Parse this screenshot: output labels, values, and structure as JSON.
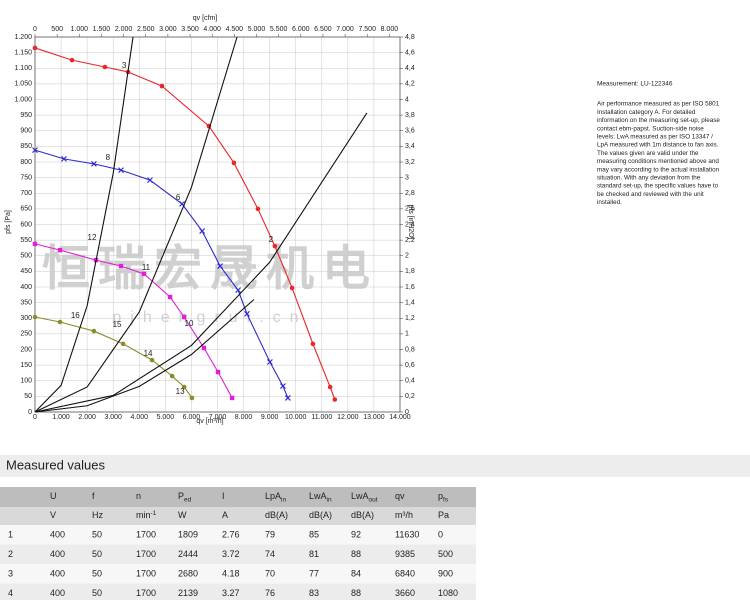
{
  "chart_data": {
    "type": "line",
    "x_label": "qv [m³/h]",
    "x2_label": "qv [cfm]",
    "y_label": "pfs [Pa]",
    "y2_label": "pfs [inH2O]",
    "xlim": [
      0,
      14000
    ],
    "x2lim": [
      0,
      8240
    ],
    "ylim": [
      0,
      1200
    ],
    "y2lim": [
      0,
      4.8
    ],
    "grid": true,
    "xticks": [
      0,
      {
        "value": 1000,
        "label": "1.000"
      },
      {
        "value": 2000,
        "label": "2.000"
      },
      {
        "value": 3000,
        "label": "3.000"
      },
      {
        "value": 4000,
        "label": "4.000"
      },
      {
        "value": 5000,
        "label": "5.000"
      },
      {
        "value": 6000,
        "label": "6.000"
      },
      {
        "value": 7000,
        "label": "7.000"
      },
      {
        "value": 8000,
        "label": "8.000"
      },
      {
        "value": 9000,
        "label": "9.000"
      },
      {
        "value": 10000,
        "label": "10.000"
      },
      {
        "value": 11000,
        "label": "11.000"
      },
      {
        "value": 12000,
        "label": "12.000"
      },
      {
        "value": 13000,
        "label": "13.000"
      },
      {
        "value": 14000,
        "label": "14.000"
      }
    ],
    "x2ticks": [
      0,
      500,
      {
        "value": 1000,
        "label": "1.000"
      },
      {
        "value": 1500,
        "label": "1.500"
      },
      {
        "value": 2000,
        "label": "2.000"
      },
      {
        "value": 2500,
        "label": "2.500"
      },
      {
        "value": 3000,
        "label": "3.000"
      },
      {
        "value": 3500,
        "label": "3.500"
      },
      {
        "value": 4000,
        "label": "4.000"
      },
      {
        "value": 4500,
        "label": "4.500"
      },
      {
        "value": 5000,
        "label": "5.000"
      },
      {
        "value": 5500,
        "label": "5.500"
      },
      {
        "value": 6000,
        "label": "6.000"
      },
      {
        "value": 6500,
        "label": "6.500"
      },
      {
        "value": 7000,
        "label": "7.000"
      },
      {
        "value": 7500,
        "label": "7.500"
      },
      {
        "value": 8000,
        "label": "8.000"
      }
    ],
    "yticks": [
      0,
      50,
      100,
      150,
      200,
      250,
      300,
      350,
      400,
      450,
      500,
      550,
      600,
      650,
      700,
      750,
      800,
      850,
      900,
      950,
      {
        "value": 1000,
        "label": "1.000"
      },
      {
        "value": 1050,
        "label": "1.050"
      },
      {
        "value": 1100,
        "label": "1.100"
      },
      {
        "value": 1150,
        "label": "1.150"
      },
      {
        "value": 1200,
        "label": "1.200"
      }
    ],
    "y2ticks": [
      0,
      {
        "value": 0.2,
        "label": "0,2"
      },
      {
        "value": 0.4,
        "label": "0,4"
      },
      {
        "value": 0.6,
        "label": "0,6"
      },
      {
        "value": 0.8,
        "label": "0,8"
      },
      1,
      {
        "value": 1.2,
        "label": "1,2"
      },
      {
        "value": 1.4,
        "label": "1,4"
      },
      {
        "value": 1.6,
        "label": "1,6"
      },
      {
        "value": 1.8,
        "label": "1,8"
      },
      2,
      {
        "value": 2.2,
        "label": "2,2"
      },
      {
        "value": 2.4,
        "label": "2,4"
      },
      {
        "value": 2.6,
        "label": "2,6"
      },
      {
        "value": 2.8,
        "label": "2,8"
      },
      3,
      {
        "value": 3.2,
        "label": "3,2"
      },
      {
        "value": 3.4,
        "label": "3,4"
      },
      {
        "value": 3.6,
        "label": "3,6"
      },
      {
        "value": 3.8,
        "label": "3,8"
      },
      4,
      {
        "value": 4.2,
        "label": "4,2"
      },
      {
        "value": 4.4,
        "label": "4,4"
      },
      {
        "value": 4.6,
        "label": "4,6"
      },
      {
        "value": 4.8,
        "label": "4,8"
      }
    ],
    "series": [
      {
        "color": "#e8262b",
        "marker": "circle",
        "x": [
          0,
          1420,
          2680,
          3570,
          4870,
          6670,
          7630,
          8550,
          9200,
          9860,
          10660,
          11320,
          11500
        ],
        "values": [
          1165,
          1126,
          1104,
          1088,
          1043,
          915,
          797,
          650,
          531,
          397,
          218,
          80,
          40
        ]
      },
      {
        "color": "#2b2bd0",
        "marker": "x",
        "x": [
          0,
          1110,
          2260,
          3300,
          4410,
          5640,
          6410,
          7100,
          7790,
          8130,
          9010,
          9510,
          9700
        ],
        "values": [
          838,
          810,
          794,
          774,
          742,
          666,
          579,
          467,
          390,
          314,
          160,
          83,
          45
        ]
      },
      {
        "color": "#e020d8",
        "marker": "square",
        "x": [
          0,
          960,
          2340,
          3300,
          4180,
          5180,
          5720,
          6480,
          7020,
          7560
        ],
        "values": [
          538,
          518,
          486,
          467,
          442,
          368,
          304,
          205,
          128,
          45
        ]
      },
      {
        "color": "#8c8c2a",
        "marker": "circle",
        "x": [
          0,
          960,
          2260,
          3380,
          4490,
          5260,
          5720,
          6020
        ],
        "values": [
          304,
          288,
          259,
          218,
          166,
          115,
          80,
          45
        ]
      },
      {
        "color": "#111111",
        "x": [
          0,
          1000,
          2000,
          3000,
          3760
        ],
        "values": [
          0,
          85,
          340,
          764,
          1200
        ]
      },
      {
        "color": "#111111",
        "x": [
          0,
          2000,
          4000,
          6000,
          7750
        ],
        "values": [
          0,
          80,
          320,
          719,
          1200
        ]
      },
      {
        "color": "#111111",
        "x": [
          0,
          3000,
          6000,
          9000,
          12730
        ],
        "values": [
          0,
          53,
          213,
          479,
          957
        ]
      },
      {
        "color": "#111111",
        "x": [
          0,
          2000,
          4000,
          6000,
          8400
        ],
        "values": [
          0,
          20,
          82,
          184,
          360
        ]
      }
    ],
    "annotations": [
      {
        "text": "3",
        "x": 3570,
        "y": 1088
      },
      {
        "text": "8",
        "x": 2950,
        "y": 794
      },
      {
        "text": "6",
        "x": 5640,
        "y": 666
      },
      {
        "text": "12",
        "x": 2340,
        "y": 538
      },
      {
        "text": "11",
        "x": 4410,
        "y": 442
      },
      {
        "text": "16",
        "x": 1700,
        "y": 288
      },
      {
        "text": "15",
        "x": 3300,
        "y": 259
      },
      {
        "text": "14",
        "x": 4490,
        "y": 166
      },
      {
        "text": "10",
        "x": 6060,
        "y": 262
      },
      {
        "text": "2",
        "x": 9200,
        "y": 531
      },
      {
        "text": "13",
        "x": 5720,
        "y": 45
      }
    ]
  },
  "watermark": {
    "name": "恒瑞宏晟机电",
    "url": "pjhengrui.cn"
  },
  "notes": {
    "measurement": "Measurement: LU-122346",
    "lines": [
      "Air performance measured as per ISO 5801",
      "Installation category A. For detailed",
      "information on the measuring set-up, please",
      "contact ebm-papst. Suction-side noise",
      "levels: LwA measured as per ISO 13347 /",
      "LpA measured with 1m distance to fan axis.",
      "The values given are valid under the",
      "measuring conditions mentioned above and",
      "may vary according to the actual installation",
      "situation. With any deviation from the",
      "standard set-up, the specific values have to",
      "be checked and reviewed with the unit",
      "installed."
    ]
  },
  "table": {
    "title": "Measured values",
    "headers": [
      {
        "text": "U"
      },
      {
        "text": "f"
      },
      {
        "text": "n"
      },
      {
        "text": "P",
        "sub": "ed"
      },
      {
        "text": "I"
      },
      {
        "text": "LpA",
        "sub": "in"
      },
      {
        "text": "LwA",
        "sub": "in"
      },
      {
        "text": "LwA",
        "sub": "out"
      },
      {
        "text": "qv"
      },
      {
        "text": "p",
        "sub": "fs"
      }
    ],
    "units": [
      {
        "text": "V"
      },
      {
        "text": "Hz"
      },
      {
        "text": "min",
        "sup": "-1"
      },
      {
        "text": "W"
      },
      {
        "text": "A"
      },
      {
        "text": "dB(A)"
      },
      {
        "text": "dB(A)"
      },
      {
        "text": "dB(A)"
      },
      {
        "text": "m³/h"
      },
      {
        "text": "Pa"
      }
    ],
    "rows": [
      [
        1,
        400,
        50,
        1700,
        1809,
        2.76,
        79,
        85,
        92,
        11630,
        0
      ],
      [
        2,
        400,
        50,
        1700,
        2444,
        3.72,
        74,
        81,
        88,
        9385,
        500
      ],
      [
        3,
        400,
        50,
        1700,
        2680,
        4.18,
        70,
        77,
        84,
        6840,
        900
      ],
      [
        4,
        400,
        50,
        1700,
        2139,
        3.27,
        76,
        83,
        88,
        3660,
        1080
      ]
    ]
  }
}
